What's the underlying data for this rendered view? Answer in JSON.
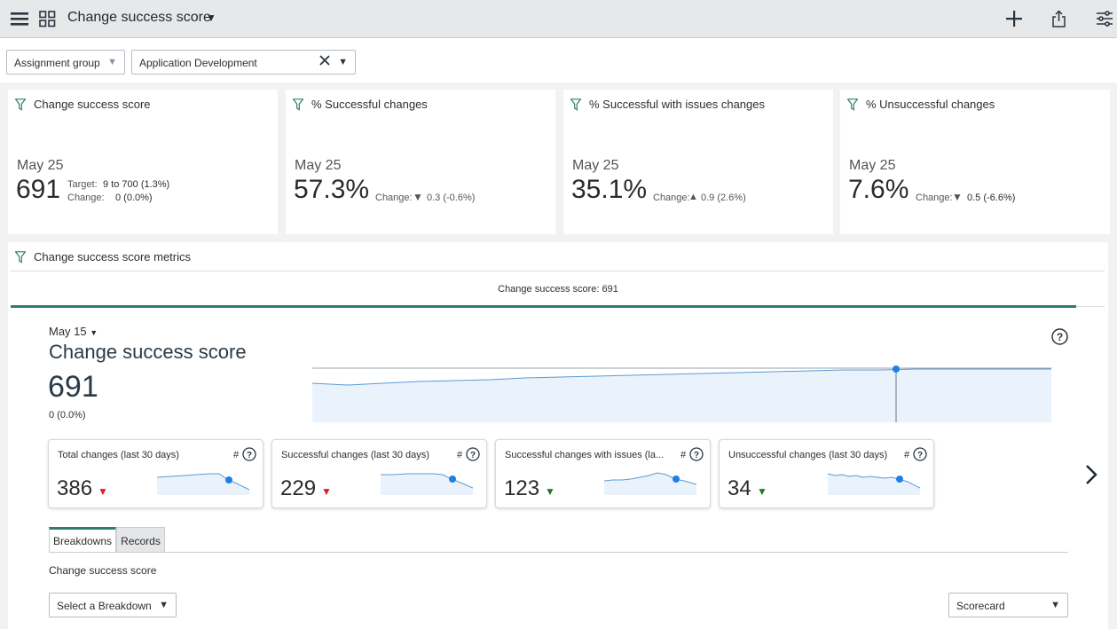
{
  "topbar": {
    "title": "Change success score",
    "menu_icon": "hamburger-menu-icon",
    "grid_icon": "grid-icon",
    "add_icon": "plus-icon",
    "share_icon": "share-icon",
    "settings_icon": "sliders-icon"
  },
  "filters": {
    "group_label": "Assignment group",
    "group_value": "Application Development",
    "clear_icon": "close-icon"
  },
  "kpis": [
    {
      "title": "Change success score",
      "date": "May 25",
      "value": "691",
      "target_label": "Target:",
      "target_value": "9 to 700 (1.3%)",
      "change_label": "Change:",
      "change_value": "0 (0.0%)"
    },
    {
      "title": "% Successful changes",
      "date": "May 25",
      "value": "57.3%",
      "change_label": "Change:",
      "change_arrow": "▼",
      "change_value": "0.3 (-0.6%)",
      "trend": "down-bad"
    },
    {
      "title": "% Successful with issues changes",
      "date": "May 25",
      "value": "35.1%",
      "change_label": "Change:",
      "change_arrow": "▲",
      "change_value": "0.9 (2.6%)",
      "trend": "up-bad"
    },
    {
      "title": "% Unsuccessful changes",
      "date": "May 25",
      "value": "7.6%",
      "change_label": "Change:",
      "change_arrow": "▼",
      "change_value": "0.5 (-6.6%)",
      "trend": "down-good"
    }
  ],
  "metrics": {
    "title": "Change success score metrics",
    "tab_header": "Change success score: 691",
    "selected_date": "May 15",
    "score_title": "Change success score",
    "score_value": "691",
    "score_change": "0 (0.0%)",
    "cards": [
      {
        "title": "Total changes (last 30 days)",
        "hash": "#",
        "value": "386",
        "arrow": "▼",
        "color": "#e02020"
      },
      {
        "title": "Successful changes (last 30 days)",
        "hash": "#",
        "value": "229",
        "arrow": "▼",
        "color": "#e02020"
      },
      {
        "title": "Successful changes with issues (la...",
        "hash": "#",
        "value": "123",
        "arrow": "▼",
        "color": "#1f7a1f"
      },
      {
        "title": "Unsuccessful changes (last 30 days)",
        "hash": "#",
        "value": "34",
        "arrow": "▼",
        "color": "#1f7a1f"
      }
    ],
    "tabs": [
      "Breakdowns",
      "Records"
    ],
    "breakdown_label": "Change success score",
    "breakdown_select": "Select a Breakdown",
    "view_select": "Scorecard"
  },
  "colors": {
    "accent": "#2f7d6f",
    "spark_line": "#5b9bd5",
    "spark_fill": "#eaf3fc",
    "marker": "#1e7fe6"
  }
}
